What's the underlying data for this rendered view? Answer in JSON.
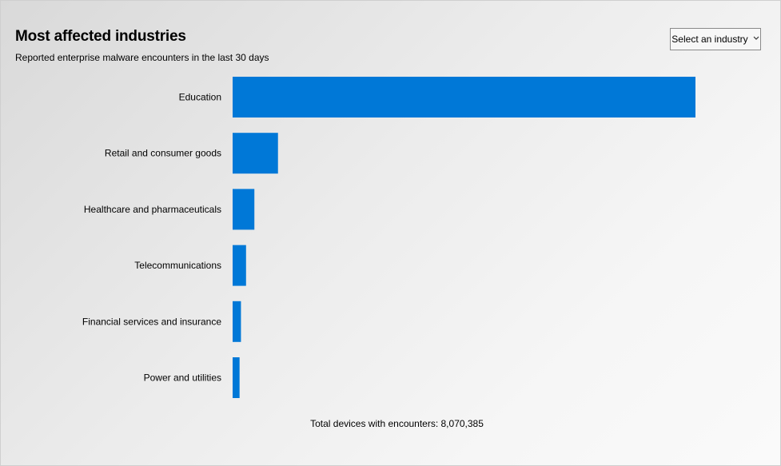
{
  "header": {
    "title": "Most affected industries",
    "subtitle": "Reported enterprise malware encounters in the last 30 days"
  },
  "industry_select": {
    "selected_label": "Select an industry",
    "icon": "chevron-down-icon"
  },
  "footer": {
    "total_text": "Total devices with encounters: 8,070,385"
  },
  "chart_data": {
    "type": "bar",
    "orientation": "horizontal",
    "title": "Most affected industries",
    "subtitle": "Reported enterprise malware encounters in the last 30 days",
    "xlabel": "",
    "ylabel": "",
    "categories": [
      "Education",
      "Retail and consumer goods",
      "Healthcare and pharmaceuticals",
      "Telecommunications",
      "Financial services and insurance",
      "Power and utilities"
    ],
    "values": [
      100,
      9.8,
      4.7,
      2.9,
      1.8,
      1.5
    ],
    "xlim": [
      0,
      100
    ],
    "bar_color": "#0078d7",
    "grid": false,
    "legend": "none"
  }
}
